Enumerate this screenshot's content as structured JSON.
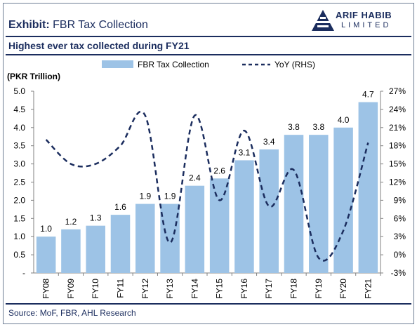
{
  "header": {
    "exhibit_prefix": "Exhibit:",
    "exhibit_title": "FBR Tax Collection",
    "subtitle": "Highest ever tax collected during FY21"
  },
  "logo": {
    "line1": "ARIF HABIB",
    "line2": "LIMITED",
    "color": "#1b2d5e"
  },
  "source": "Source: MoF, FBR, AHL Research",
  "chart_data": {
    "type": "bar",
    "unit_label": "(PKR Trillion)",
    "categories": [
      "FY08",
      "FY09",
      "FY10",
      "FY11",
      "FY12",
      "FY13",
      "FY14",
      "FY15",
      "FY16",
      "FY17",
      "FY18",
      "FY19",
      "FY20",
      "FY21"
    ],
    "series": [
      {
        "name": "FBR Tax Collection",
        "type": "bar",
        "axis": "left",
        "color": "#9dc3e6",
        "values": [
          1.0,
          1.2,
          1.3,
          1.6,
          1.9,
          1.9,
          2.4,
          2.6,
          3.1,
          3.4,
          3.8,
          3.8,
          4.0,
          4.7
        ],
        "labels": [
          "1.0",
          "1.2",
          "1.3",
          "1.6",
          "1.9",
          "1.9",
          "2.4",
          "2.6",
          "3.1",
          "3.4",
          "3.8",
          "3.8",
          "4.0",
          "4.7"
        ]
      },
      {
        "name": "YoY (RHS)",
        "type": "line",
        "style": "dashed",
        "axis": "right",
        "color": "#1b2d5e",
        "values": [
          19.0,
          15.0,
          15.0,
          18.0,
          23.0,
          2.0,
          23.0,
          9.0,
          20.5,
          8.0,
          14.0,
          -0.5,
          4.0,
          18.5
        ]
      }
    ],
    "y_left": {
      "min": 0,
      "max": 5.0,
      "ticks": [
        "-",
        "0.5",
        "1.0",
        "1.5",
        "2.0",
        "2.5",
        "3.0",
        "3.5",
        "4.0",
        "4.5",
        "5.0"
      ]
    },
    "y_right": {
      "min": -3,
      "max": 27,
      "ticks": [
        "-3%",
        "0%",
        "3%",
        "6%",
        "9%",
        "12%",
        "15%",
        "18%",
        "21%",
        "24%",
        "27%"
      ]
    },
    "legend_position": "top",
    "grid": false
  }
}
